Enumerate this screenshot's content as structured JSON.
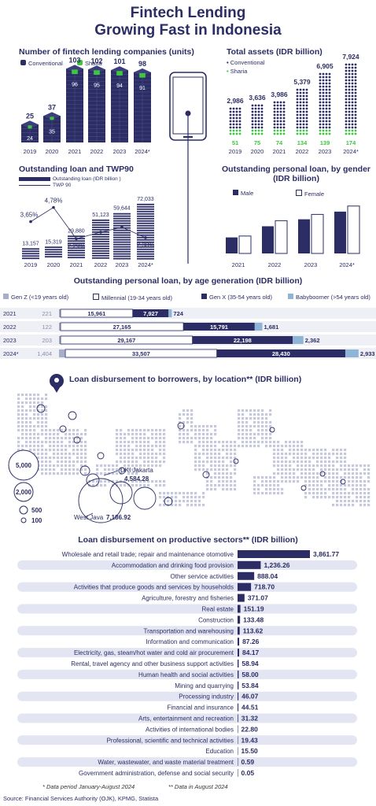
{
  "title_line1": "Fintech Lending",
  "title_line2": "Growing Fast in Indonesia",
  "colors": {
    "navy": "#2b2d64",
    "green": "#3ec63e",
    "lightblue": "#8fb4d6",
    "grey": "#a8aec7",
    "pill": "#e3e6f2",
    "dots": "#c6c9dc"
  },
  "chart_data": [
    {
      "type": "bar",
      "title": "Number of fintech lending companies (units)",
      "categories": [
        "2019",
        "2020",
        "2021",
        "2022",
        "2023",
        "2024*"
      ],
      "totals": [
        25,
        37,
        103,
        102,
        101,
        98
      ],
      "series": [
        {
          "name": "Conventional",
          "values": [
            24,
            35,
            96,
            95,
            94,
            91
          ]
        },
        {
          "name": "Sharia",
          "values": [
            1,
            2,
            7,
            7,
            7,
            7
          ]
        }
      ]
    },
    {
      "type": "bar",
      "title": "Total assets (IDR billion)",
      "categories": [
        "2019",
        "2020",
        "2021",
        "2022",
        "2023",
        "2024*"
      ],
      "totals": [
        2986,
        3636,
        3986,
        5379,
        6905,
        7924
      ],
      "total_labels": [
        "2,986",
        "3,636",
        "3,986",
        "5,379",
        "6,905",
        "7,924"
      ],
      "series": [
        {
          "name": "Conventional",
          "values": [
            2935,
            3561,
            3912,
            5245,
            6766,
            7750
          ]
        },
        {
          "name": "Sharia",
          "values": [
            51,
            75,
            74,
            134,
            139,
            174
          ]
        }
      ]
    },
    {
      "type": "bar",
      "title": "Outstanding loan and TWP90",
      "categories": [
        "2019",
        "2020",
        "2021",
        "2022",
        "2023",
        "2024*"
      ],
      "series": [
        {
          "name": "Outstanding loan (IDR billion )",
          "values": [
            13157,
            15319,
            29880,
            51123,
            59644,
            72033
          ],
          "labels": [
            "13,157",
            "15,319",
            "29,880",
            "51,123",
            "59,644",
            "72,033"
          ]
        },
        {
          "name": "TWP 90",
          "values": [
            3.65,
            4.78,
            2.29,
            2.82,
            3.2,
            2.38
          ],
          "labels": [
            "3,65%",
            "4,78%",
            "2,29%",
            "",
            "",
            "2,38%"
          ]
        }
      ]
    },
    {
      "type": "bar",
      "title": "Outstanding personal loan, by gender (IDR billion)",
      "categories": [
        "2021",
        "2022",
        "2023",
        "2024*"
      ],
      "series": [
        {
          "name": "Male",
          "values": [
            11500,
            19500,
            24500,
            30000
          ]
        },
        {
          "name": "Female",
          "values": [
            12500,
            23500,
            28000,
            34000
          ]
        }
      ]
    },
    {
      "type": "bar",
      "title": "Outstanding personal loan, by age generation (IDR billion)",
      "categories": [
        "2021",
        "2022",
        "2023",
        "2024*"
      ],
      "series": [
        {
          "name": "Gen Z  (<19 years old)",
          "values": [
            221,
            122,
            203,
            1404
          ],
          "labels": [
            "221",
            "122",
            "203",
            "1,404"
          ]
        },
        {
          "name": "Millennial  (19-34 years old)",
          "values": [
            15961,
            27165,
            29167,
            33507
          ],
          "labels": [
            "15,961",
            "27,165",
            "29,167",
            "33,507"
          ]
        },
        {
          "name": "Gen X (35-54 years old)",
          "values": [
            7927,
            15791,
            22198,
            28430
          ],
          "labels": [
            "7,927",
            "15,791",
            "22,198",
            "28,430"
          ]
        },
        {
          "name": "Babyboomer (>54 years old)",
          "values": [
            724,
            1681,
            2362,
            2933
          ],
          "labels": [
            "724",
            "1,681",
            "2,362",
            "2,933"
          ]
        }
      ]
    },
    {
      "type": "scatter",
      "title": "Loan disbursement to borrowers, by location**  (IDR billion)",
      "legend_sizes": [
        "5,000",
        "2,000",
        "500",
        "100"
      ],
      "annotations": [
        {
          "name": "DKI Jakarta",
          "value": "4,584.28"
        },
        {
          "name": "West Java",
          "value": "7,186.92"
        }
      ]
    },
    {
      "type": "bar",
      "title": "Loan disbursement on productive sectors** (IDR billion)",
      "categories": [
        "Wholesale and retail trade; repair and maintenance otomotive",
        "Accommodation and drinking food provision",
        "Other service activities",
        "Activities that produce goods and services by households",
        "Agriculture, forestry and fisheries",
        "Real estate",
        "Construction",
        "Transportation and warehousing",
        "Information and communication",
        "Electricity, gas, steam/hot water and cold air procurement",
        "Rental, travel agency and other business support activities",
        "Human health and social activities",
        "Mining and quarrying",
        "Processing industry",
        "Financial and insurance",
        "Arts, entertainment and recreation",
        "Activities of international bodies",
        "Professional, scientific and technical activities",
        "Education",
        "Water, wastewater, and waste material treatment",
        "Government administration, defense and social security"
      ],
      "values": [
        3861.77,
        1236.26,
        888.04,
        718.7,
        371.07,
        151.19,
        133.48,
        113.62,
        87.26,
        84.17,
        58.94,
        58.0,
        53.84,
        46.07,
        44.51,
        31.32,
        22.8,
        19.43,
        15.5,
        0.59,
        0.05
      ],
      "labels": [
        "3,861.77",
        "1,236.26",
        "888.04",
        "718.70",
        "371.07",
        "151.19",
        "133.48",
        "113.62",
        "87.26",
        "84.17",
        "58.94",
        "58.00",
        "53.84",
        "46.07",
        "44.51",
        "31.32",
        "22.80",
        "19.43",
        "15.50",
        "0.59",
        "0.05"
      ]
    }
  ],
  "footnote1": "*  Data period January-August 2024",
  "footnote2": "** Data in August 2024",
  "source": "Source: Financial Services Authority (OJK), KPMG, Statista"
}
